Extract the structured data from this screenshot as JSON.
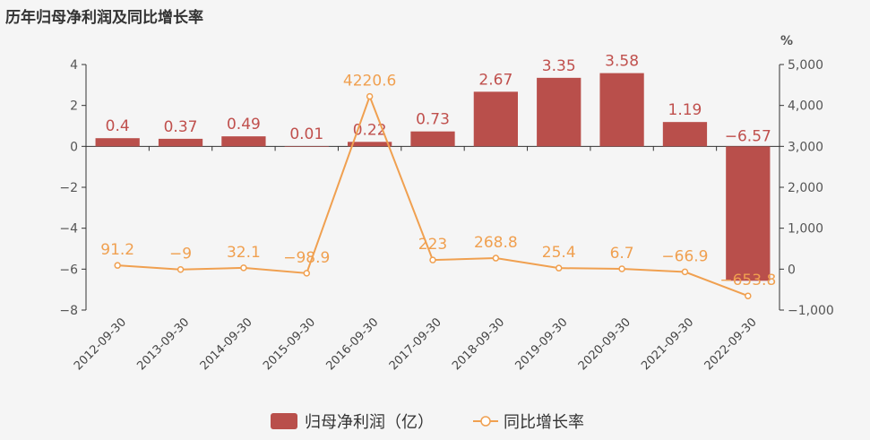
{
  "chart_data": {
    "type": "bar",
    "title": "历年归母净利润及同比增长率",
    "categories": [
      "2012-09-30",
      "2013-09-30",
      "2014-09-30",
      "2015-09-30",
      "2016-09-30",
      "2017-09-30",
      "2018-09-30",
      "2019-09-30",
      "2020-09-30",
      "2021-09-30",
      "2022-09-30"
    ],
    "series": [
      {
        "name": "归母净利润（亿）",
        "type": "bar",
        "axis": "left",
        "color": "#b94f4b",
        "values": [
          0.4,
          0.37,
          0.49,
          0.01,
          0.22,
          0.73,
          2.67,
          3.35,
          3.58,
          1.19,
          -6.57
        ],
        "labels": [
          "0.4",
          "0.37",
          "0.49",
          "0.01",
          "0.22",
          "0.73",
          "2.67",
          "3.35",
          "3.58",
          "1.19",
          "−6.57"
        ]
      },
      {
        "name": "同比增长率",
        "type": "line",
        "axis": "right",
        "color": "#f0a050",
        "values": [
          91.2,
          -9,
          32.1,
          -98.9,
          4220.6,
          223,
          268.8,
          25.4,
          6.7,
          -66.9,
          -653.8
        ],
        "labels": [
          "91.2",
          "−9",
          "32.1",
          "−98.9",
          "4220.6",
          "223",
          "268.8",
          "25.4",
          "6.7",
          "−66.9",
          "−653.8"
        ]
      }
    ],
    "y_left": {
      "ylim": [
        -8,
        4
      ],
      "ticks": [
        4,
        2,
        0,
        -2,
        -4,
        -6,
        -8
      ],
      "tick_labels": [
        "4",
        "2",
        "0",
        "−2",
        "−4",
        "−6",
        "−8"
      ]
    },
    "y_right": {
      "unit": "%",
      "ylim": [
        -1000,
        5000
      ],
      "ticks": [
        5000,
        4000,
        3000,
        2000,
        1000,
        0,
        -1000
      ],
      "tick_labels": [
        "5,000",
        "4,000",
        "3,000",
        "2,000",
        "1,000",
        "0",
        "−1,000"
      ]
    },
    "legend_position": "bottom-center",
    "grid": false
  }
}
